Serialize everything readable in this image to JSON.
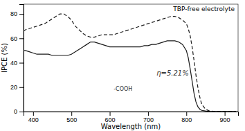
{
  "chart_data": {
    "type": "line",
    "title": "TBP-free electrolyte",
    "xlabel": "Wavelength (nm)",
    "ylabel": "IPCE (%)",
    "x": [
      375,
      380,
      390,
      400,
      410,
      420,
      430,
      440,
      450,
      460,
      470,
      480,
      490,
      500,
      510,
      520,
      530,
      540,
      550,
      560,
      570,
      580,
      590,
      600,
      610,
      620,
      630,
      640,
      650,
      660,
      670,
      680,
      690,
      700,
      710,
      720,
      730,
      740,
      750,
      760,
      770,
      780,
      790,
      800,
      805,
      810,
      815,
      820,
      825,
      830,
      835,
      840,
      850,
      860,
      870,
      880,
      890,
      900,
      910,
      920,
      930
    ],
    "series": [
      {
        "color": "#1a1a1a",
        "line_style": "solid",
        "values": [
          50,
          50,
          49,
          48,
          47,
          47,
          47,
          47,
          46,
          46,
          46,
          46,
          46,
          47,
          49,
          51,
          53,
          55,
          57,
          57,
          56,
          55,
          54,
          53,
          53,
          53,
          53,
          53,
          53,
          53,
          53,
          53,
          54,
          54,
          55,
          55,
          56,
          57,
          58,
          58,
          58,
          57,
          55,
          50,
          44,
          35,
          25,
          15,
          8,
          4,
          2,
          1,
          0.5,
          0.2,
          0.1,
          0.1,
          0.1,
          0.1,
          0.1,
          0.1,
          0.1
        ]
      },
      {
        "color": "#1a1a1a",
        "line_style": "dashed",
        "values": [
          66,
          67,
          68,
          69,
          70,
          71,
          72,
          74,
          76,
          78,
          80,
          80,
          78,
          75,
          70,
          67,
          64,
          62,
          61,
          61,
          62,
          63,
          63,
          63,
          63,
          64,
          65,
          66,
          67,
          68,
          69,
          70,
          71,
          72,
          73,
          74,
          75,
          76,
          77,
          78,
          78,
          77,
          75,
          72,
          68,
          62,
          53,
          42,
          30,
          20,
          12,
          6,
          2,
          0.5,
          0.2,
          0.1,
          0.1,
          0.1,
          0.1,
          0.1,
          0.1
        ]
      }
    ],
    "xlim": [
      375,
      935
    ],
    "ylim": [
      0,
      88
    ],
    "xticks": [
      400,
      500,
      600,
      700,
      800,
      900
    ],
    "yticks": [
      0,
      20,
      40,
      60,
      80
    ],
    "annotations": [
      {
        "text": "η=5.21%"
      },
      {
        "text": "-COOH"
      }
    ]
  }
}
